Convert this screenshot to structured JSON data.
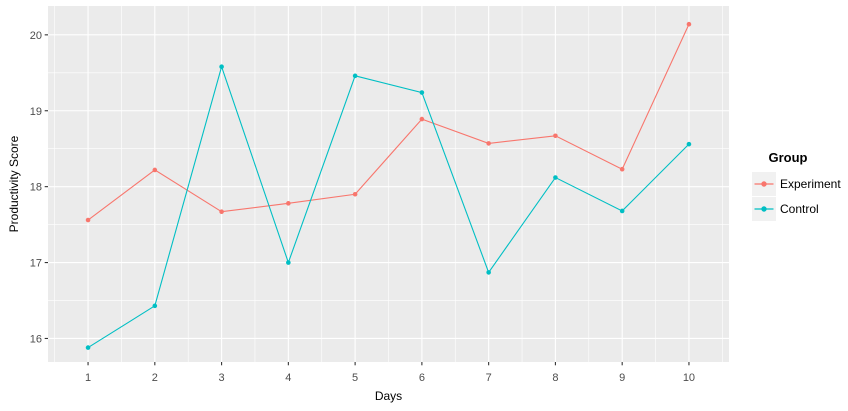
{
  "chart_data": {
    "type": "line",
    "x": [
      1,
      2,
      3,
      4,
      5,
      6,
      7,
      8,
      9,
      10
    ],
    "series": [
      {
        "name": "Experiment",
        "color": "#F8766D",
        "values": [
          17.56,
          18.22,
          17.67,
          17.78,
          17.9,
          18.89,
          18.57,
          18.67,
          18.23,
          20.14
        ]
      },
      {
        "name": "Control",
        "color": "#00BFC4",
        "values": [
          15.88,
          16.43,
          19.58,
          17.0,
          19.46,
          19.24,
          16.87,
          18.12,
          17.68,
          18.56
        ]
      }
    ],
    "title": "",
    "xlabel": "Days",
    "ylabel": "Productivity Score",
    "legend_title": "Group",
    "legend_position": "right",
    "xlim": [
      0.4,
      10.6
    ],
    "ylim": [
      15.69,
      20.38
    ],
    "x_ticks": [
      1,
      2,
      3,
      4,
      5,
      6,
      7,
      8,
      9,
      10
    ],
    "y_ticks": [
      16,
      17,
      18,
      19,
      20
    ],
    "x_minor_ticks": [
      0.5,
      1.5,
      2.5,
      3.5,
      4.5,
      5.5,
      6.5,
      7.5,
      8.5,
      9.5,
      10.5
    ],
    "y_minor_ticks": [
      16.5,
      17.5,
      18.5,
      19.5
    ],
    "grid": true,
    "panel_background": "#EBEBEB",
    "grid_color": "#FFFFFF",
    "tick_color": "#333333",
    "tick_label_color": "#4D4D4D",
    "axis_title_color": "#000000",
    "legend_key_background": "#F1F1F1"
  }
}
